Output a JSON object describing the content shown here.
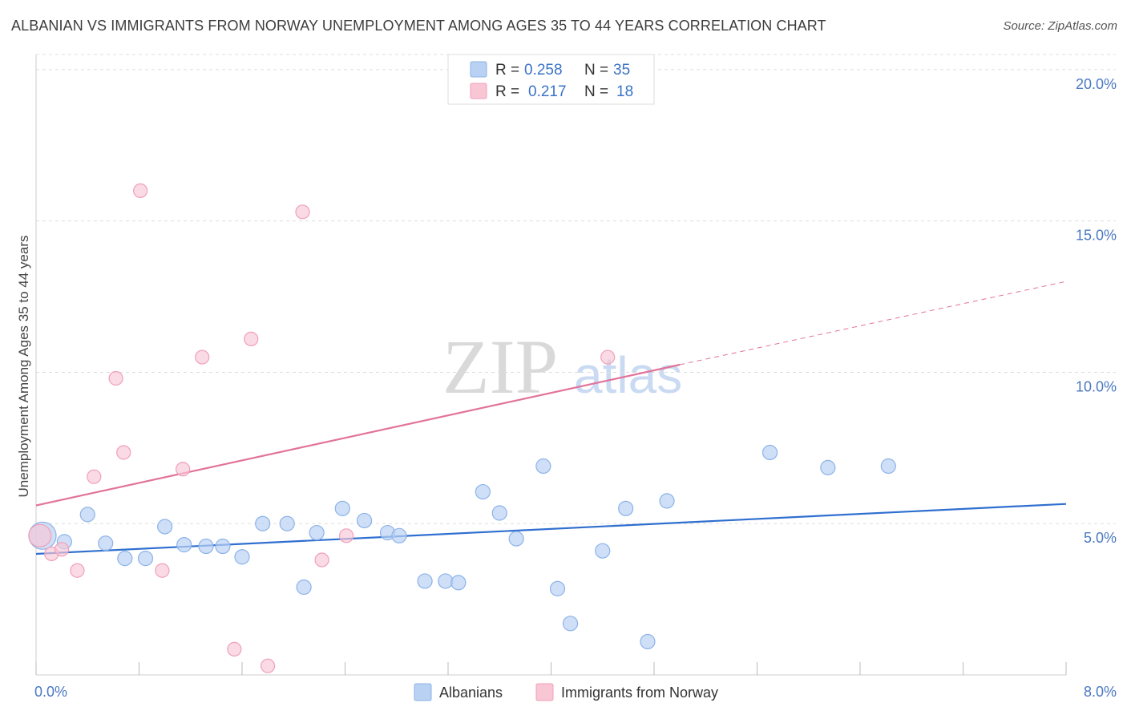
{
  "header": {
    "title": "ALBANIAN VS IMMIGRANTS FROM NORWAY UNEMPLOYMENT AMONG AGES 35 TO 44 YEARS CORRELATION CHART",
    "source": "Source: ZipAtlas.com"
  },
  "watermark": {
    "zip": "ZIP",
    "atlas": "atlas"
  },
  "legend": {
    "rows": [
      {
        "r_label": "R =",
        "r_value": "0.258",
        "n_label": "N =",
        "n_value": "35"
      },
      {
        "r_label": "R =",
        "r_value": "0.217",
        "n_label": "N =",
        "n_value": "18"
      }
    ]
  },
  "bottom_legend": {
    "series_a": "Albanians",
    "series_b": "Immigrants from Norway"
  },
  "colors": {
    "albanians_fill": "#b9d1f3",
    "albanians_stroke": "#8db3e8",
    "albanians_line": "#2f6fcf",
    "norway_fill": "#f8c6d5",
    "norway_stroke": "#f0a0b8",
    "norway_line": "#e2739a",
    "tick_text": "#4a78c2",
    "grid": "#dddddd"
  },
  "chart_data": {
    "type": "scatter",
    "title": "ALBANIAN VS IMMIGRANTS FROM NORWAY UNEMPLOYMENT AMONG AGES 35 TO 44 YEARS CORRELATION CHART",
    "xlabel": "",
    "ylabel": "Unemployment Among Ages 35 to 44 years",
    "xlim": [
      0,
      8
    ],
    "ylim": [
      0,
      20.5
    ],
    "x_tick_labels": [
      "0.0%",
      "8.0%"
    ],
    "y_ticks": [
      5,
      10,
      15,
      20
    ],
    "y_tick_labels": [
      "5.0%",
      "10.0%",
      "15.0%",
      "20.0%"
    ],
    "grid": true,
    "legend_position": "top-center",
    "series": [
      {
        "name": "Albanians",
        "R": 0.258,
        "N": 35,
        "points": [
          [
            0.05,
            4.6
          ],
          [
            0.22,
            4.4
          ],
          [
            0.4,
            5.3
          ],
          [
            0.54,
            4.35
          ],
          [
            0.69,
            3.85
          ],
          [
            0.85,
            3.85
          ],
          [
            1.0,
            4.9
          ],
          [
            1.15,
            4.3
          ],
          [
            1.32,
            4.25
          ],
          [
            1.45,
            4.25
          ],
          [
            1.6,
            3.9
          ],
          [
            1.76,
            5.0
          ],
          [
            1.95,
            5.0
          ],
          [
            2.08,
            2.9
          ],
          [
            2.18,
            4.7
          ],
          [
            2.38,
            5.5
          ],
          [
            2.55,
            5.1
          ],
          [
            2.73,
            4.7
          ],
          [
            2.82,
            4.6
          ],
          [
            3.02,
            3.1
          ],
          [
            3.18,
            3.1
          ],
          [
            3.28,
            3.05
          ],
          [
            3.47,
            6.05
          ],
          [
            3.6,
            5.35
          ],
          [
            3.73,
            4.5
          ],
          [
            3.94,
            6.9
          ],
          [
            4.05,
            2.85
          ],
          [
            4.15,
            1.7
          ],
          [
            4.4,
            4.1
          ],
          [
            4.58,
            5.5
          ],
          [
            4.75,
            1.1
          ],
          [
            4.9,
            5.75
          ],
          [
            5.7,
            7.35
          ],
          [
            6.15,
            6.85
          ],
          [
            6.62,
            6.9
          ]
        ],
        "trend": {
          "x": [
            0,
            8
          ],
          "y": [
            4.0,
            5.65
          ]
        }
      },
      {
        "name": "Immigrants from Norway",
        "R": 0.217,
        "N": 18,
        "points": [
          [
            0.03,
            4.6
          ],
          [
            0.12,
            4.0
          ],
          [
            0.2,
            4.15
          ],
          [
            0.32,
            3.45
          ],
          [
            0.45,
            6.55
          ],
          [
            0.62,
            9.8
          ],
          [
            0.68,
            7.35
          ],
          [
            0.81,
            16.0
          ],
          [
            0.98,
            3.45
          ],
          [
            1.14,
            6.8
          ],
          [
            1.29,
            10.5
          ],
          [
            1.54,
            0.85
          ],
          [
            1.67,
            11.1
          ],
          [
            1.8,
            0.3
          ],
          [
            2.07,
            15.3
          ],
          [
            2.22,
            3.8
          ],
          [
            2.41,
            4.6
          ],
          [
            4.44,
            10.5
          ]
        ],
        "trend": {
          "x": [
            0,
            5.0
          ],
          "y": [
            5.6,
            10.25
          ]
        },
        "trend_extension": {
          "x": [
            5.0,
            8
          ],
          "y": [
            10.25,
            13.0
          ]
        }
      }
    ]
  }
}
